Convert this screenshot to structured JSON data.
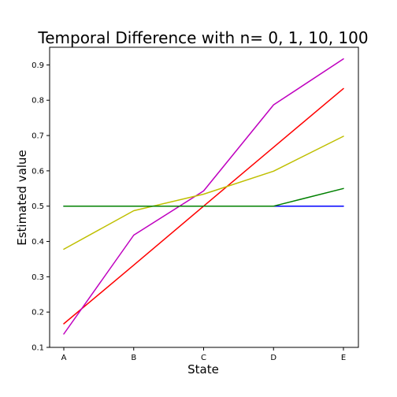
{
  "chart_data": {
    "type": "line",
    "title": "Temporal Difference with n= 0, 1, 10, 100",
    "xlabel": "State",
    "ylabel": "Estimated value",
    "categories": [
      "A",
      "B",
      "C",
      "D",
      "E"
    ],
    "ylim": [
      0.1,
      0.95
    ],
    "yticks": [
      "0.1",
      "0.2",
      "0.3",
      "0.4",
      "0.5",
      "0.6",
      "0.7",
      "0.8",
      "0.9"
    ],
    "grid": false,
    "series": [
      {
        "color": "#ff0000",
        "values": [
          0.167,
          0.333,
          0.5,
          0.667,
          0.833
        ]
      },
      {
        "color": "#bf00bf",
        "values": [
          0.138,
          0.418,
          0.543,
          0.787,
          0.917
        ]
      },
      {
        "color": "#bfbf00",
        "values": [
          0.378,
          0.487,
          0.534,
          0.599,
          0.698
        ]
      },
      {
        "color": "#0000ff",
        "values": [
          0.5,
          0.5,
          0.5,
          0.5,
          0.5
        ]
      },
      {
        "color": "#008000",
        "values": [
          0.5,
          0.5,
          0.5,
          0.5,
          0.55
        ]
      }
    ]
  }
}
